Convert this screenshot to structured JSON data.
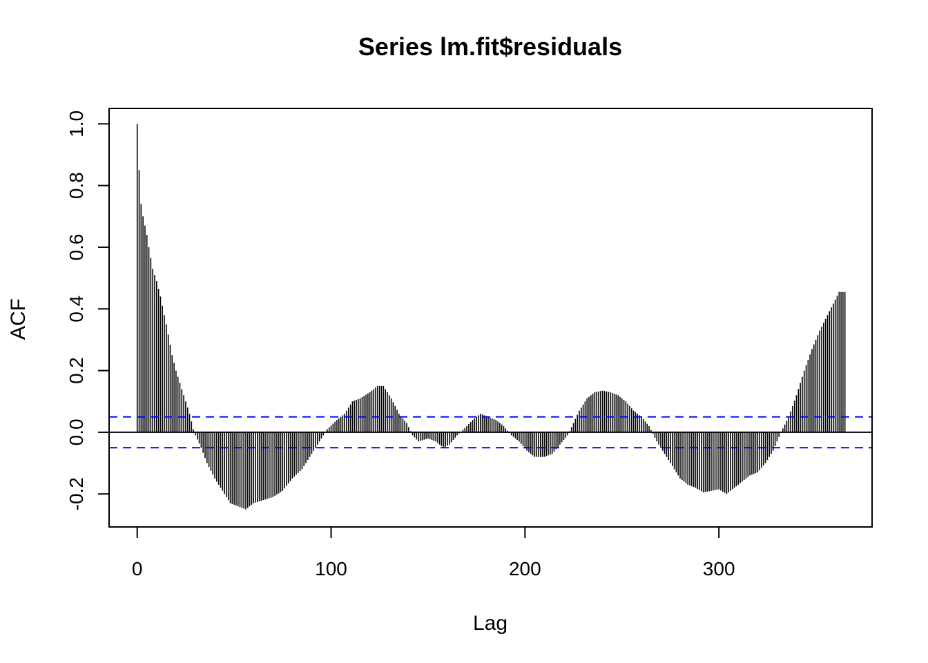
{
  "chart_data": {
    "type": "bar",
    "title": "Series  lm.fit$residuals",
    "xlabel": "Lag",
    "ylabel": "ACF",
    "xlim": [
      -14.5,
      379
    ],
    "ylim": [
      -0.307,
      1.05
    ],
    "x_ticks": [
      0,
      100,
      200,
      300
    ],
    "y_ticks": [
      -0.2,
      0.0,
      0.2,
      0.4,
      0.6,
      0.8,
      1.0
    ],
    "x_tick_labels": [
      "0",
      "100",
      "200",
      "300"
    ],
    "y_tick_labels": [
      "-0.2",
      "0.0",
      "0.2",
      "0.4",
      "0.6",
      "0.8",
      "1.0"
    ],
    "grid": false,
    "confidence_limits": [
      0.05,
      -0.05
    ],
    "colors": {
      "bars": "#000000",
      "confidence": "#0000ff",
      "zero_line": "#000000",
      "frame": "#000000"
    },
    "acf_anchor_points": [
      [
        0,
        1.0
      ],
      [
        1,
        0.85
      ],
      [
        2,
        0.74
      ],
      [
        3,
        0.7
      ],
      [
        4,
        0.67
      ],
      [
        5,
        0.64
      ],
      [
        6,
        0.6
      ],
      [
        8,
        0.53
      ],
      [
        10,
        0.49
      ],
      [
        12,
        0.44
      ],
      [
        15,
        0.35
      ],
      [
        18,
        0.25
      ],
      [
        20,
        0.2
      ],
      [
        23,
        0.14
      ],
      [
        25,
        0.1
      ],
      [
        27,
        0.06
      ],
      [
        29,
        0.01
      ],
      [
        30,
        -0.01
      ],
      [
        33,
        -0.05
      ],
      [
        36,
        -0.1
      ],
      [
        40,
        -0.15
      ],
      [
        44,
        -0.19
      ],
      [
        48,
        -0.23
      ],
      [
        52,
        -0.24
      ],
      [
        56,
        -0.25
      ],
      [
        60,
        -0.23
      ],
      [
        65,
        -0.22
      ],
      [
        70,
        -0.21
      ],
      [
        75,
        -0.19
      ],
      [
        80,
        -0.15
      ],
      [
        85,
        -0.12
      ],
      [
        90,
        -0.07
      ],
      [
        95,
        -0.02
      ],
      [
        98,
        0.01
      ],
      [
        103,
        0.04
      ],
      [
        107,
        0.06
      ],
      [
        111,
        0.1
      ],
      [
        115,
        0.11
      ],
      [
        120,
        0.13
      ],
      [
        124,
        0.15
      ],
      [
        127,
        0.15
      ],
      [
        131,
        0.11
      ],
      [
        135,
        0.06
      ],
      [
        139,
        0.03
      ],
      [
        142,
        -0.01
      ],
      [
        145,
        -0.03
      ],
      [
        150,
        -0.02
      ],
      [
        154,
        -0.03
      ],
      [
        158,
        -0.05
      ],
      [
        161,
        -0.04
      ],
      [
        165,
        -0.01
      ],
      [
        170,
        0.02
      ],
      [
        173,
        0.04
      ],
      [
        177,
        0.06
      ],
      [
        181,
        0.05
      ],
      [
        185,
        0.04
      ],
      [
        189,
        0.02
      ],
      [
        193,
        -0.01
      ],
      [
        197,
        -0.03
      ],
      [
        201,
        -0.06
      ],
      [
        205,
        -0.08
      ],
      [
        210,
        -0.08
      ],
      [
        214,
        -0.07
      ],
      [
        218,
        -0.04
      ],
      [
        222,
        -0.01
      ],
      [
        225,
        0.03
      ],
      [
        228,
        0.07
      ],
      [
        232,
        0.11
      ],
      [
        236,
        0.13
      ],
      [
        240,
        0.135
      ],
      [
        244,
        0.13
      ],
      [
        248,
        0.12
      ],
      [
        252,
        0.1
      ],
      [
        256,
        0.07
      ],
      [
        260,
        0.05
      ],
      [
        264,
        0.02
      ],
      [
        268,
        -0.03
      ],
      [
        272,
        -0.07
      ],
      [
        276,
        -0.11
      ],
      [
        280,
        -0.15
      ],
      [
        284,
        -0.17
      ],
      [
        288,
        -0.18
      ],
      [
        292,
        -0.195
      ],
      [
        296,
        -0.19
      ],
      [
        300,
        -0.185
      ],
      [
        304,
        -0.2
      ],
      [
        308,
        -0.18
      ],
      [
        312,
        -0.16
      ],
      [
        316,
        -0.14
      ],
      [
        320,
        -0.13
      ],
      [
        324,
        -0.1
      ],
      [
        328,
        -0.06
      ],
      [
        332,
        0.0
      ],
      [
        336,
        0.05
      ],
      [
        340,
        0.12
      ],
      [
        344,
        0.2
      ],
      [
        348,
        0.27
      ],
      [
        352,
        0.33
      ],
      [
        356,
        0.38
      ],
      [
        360,
        0.43
      ],
      [
        362,
        0.455
      ],
      [
        365,
        0.455
      ]
    ],
    "max_lag": 365
  }
}
